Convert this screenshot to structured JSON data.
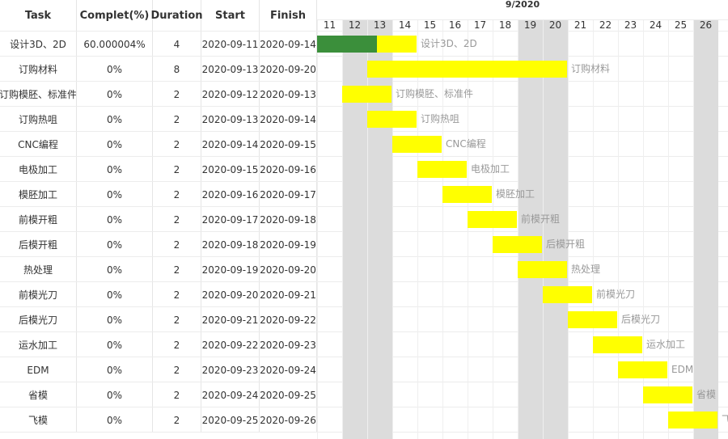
{
  "columns": {
    "task": "Task",
    "complete": "Complet(%)",
    "duration": "Duration",
    "start": "Start",
    "finish": "Finish"
  },
  "month_label": "9/2020",
  "days": [
    "11",
    "12",
    "13",
    "14",
    "15",
    "16",
    "17",
    "18",
    "19",
    "20",
    "21",
    "22",
    "23",
    "24",
    "25",
    "26"
  ],
  "weekend_days": [
    "12",
    "13",
    "19",
    "20",
    "26"
  ],
  "colors": {
    "bar": "#ffff00",
    "progress": "#3b8f3b",
    "weekend": "#dcdcdc"
  },
  "tasks": [
    {
      "name": "设计3D、2D",
      "complete": "60.000004%",
      "duration": "4",
      "start": "2020-09-11",
      "finish": "2020-09-14",
      "progress": 0.6
    },
    {
      "name": "订购材料",
      "complete": "0%",
      "duration": "8",
      "start": "2020-09-13",
      "finish": "2020-09-20",
      "progress": 0
    },
    {
      "name": "订购模胚、标准件",
      "complete": "0%",
      "duration": "2",
      "start": "2020-09-12",
      "finish": "2020-09-13",
      "progress": 0
    },
    {
      "name": "订购热咀",
      "complete": "0%",
      "duration": "2",
      "start": "2020-09-13",
      "finish": "2020-09-14",
      "progress": 0
    },
    {
      "name": "CNC编程",
      "complete": "0%",
      "duration": "2",
      "start": "2020-09-14",
      "finish": "2020-09-15",
      "progress": 0
    },
    {
      "name": "电极加工",
      "complete": "0%",
      "duration": "2",
      "start": "2020-09-15",
      "finish": "2020-09-16",
      "progress": 0
    },
    {
      "name": "模胚加工",
      "complete": "0%",
      "duration": "2",
      "start": "2020-09-16",
      "finish": "2020-09-17",
      "progress": 0
    },
    {
      "name": "前模开粗",
      "complete": "0%",
      "duration": "2",
      "start": "2020-09-17",
      "finish": "2020-09-18",
      "progress": 0
    },
    {
      "name": "后模开粗",
      "complete": "0%",
      "duration": "2",
      "start": "2020-09-18",
      "finish": "2020-09-19",
      "progress": 0
    },
    {
      "name": "热处理",
      "complete": "0%",
      "duration": "2",
      "start": "2020-09-19",
      "finish": "2020-09-20",
      "progress": 0
    },
    {
      "name": "前模光刀",
      "complete": "0%",
      "duration": "2",
      "start": "2020-09-20",
      "finish": "2020-09-21",
      "progress": 0
    },
    {
      "name": "后模光刀",
      "complete": "0%",
      "duration": "2",
      "start": "2020-09-21",
      "finish": "2020-09-22",
      "progress": 0
    },
    {
      "name": "运水加工",
      "complete": "0%",
      "duration": "2",
      "start": "2020-09-22",
      "finish": "2020-09-23",
      "progress": 0
    },
    {
      "name": "EDM",
      "complete": "0%",
      "duration": "2",
      "start": "2020-09-23",
      "finish": "2020-09-24",
      "progress": 0
    },
    {
      "name": "省模",
      "complete": "0%",
      "duration": "2",
      "start": "2020-09-24",
      "finish": "2020-09-25",
      "progress": 0
    },
    {
      "name": "飞模",
      "complete": "0%",
      "duration": "2",
      "start": "2020-09-25",
      "finish": "2020-09-26",
      "progress": 0
    }
  ]
}
